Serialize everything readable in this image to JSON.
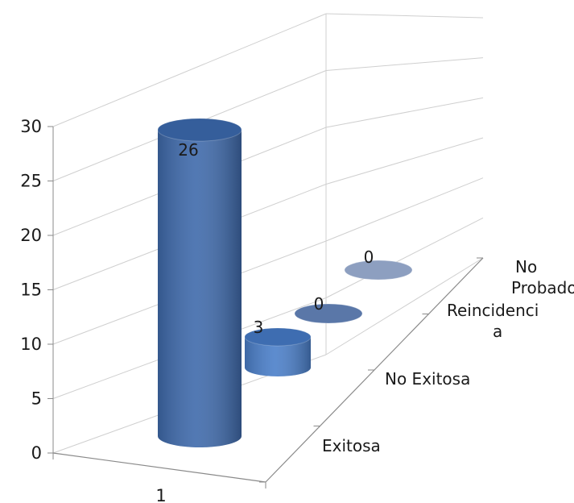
{
  "chart_data": {
    "type": "bar",
    "variant": "3d-cylinder",
    "title": "",
    "xlabel": "",
    "ylabel": "",
    "ylim": [
      0,
      30
    ],
    "yticks": [
      0,
      5,
      10,
      15,
      20,
      25,
      30
    ],
    "categories": [
      "1"
    ],
    "series": [
      {
        "name": "Exitosa",
        "values": [
          26
        ],
        "data_label": "26",
        "color": "#3f6aab"
      },
      {
        "name": "No Exitosa",
        "values": [
          3
        ],
        "data_label": "3",
        "color": "#4b7fc9"
      },
      {
        "name": "Reincidencia",
        "values": [
          0
        ],
        "data_label": "0",
        "color": "#5a77a8"
      },
      {
        "name": "No Probados",
        "values": [
          0
        ],
        "data_label": "0",
        "color": "#8d9fc0"
      }
    ],
    "depth_labels": [
      {
        "lines": [
          "Exitosa"
        ]
      },
      {
        "lines": [
          "No Exitosa"
        ]
      },
      {
        "lines": [
          "Reincidenci",
          "a"
        ]
      },
      {
        "lines": [
          "No",
          "Probados"
        ]
      }
    ],
    "grid": true,
    "legend": "none"
  }
}
